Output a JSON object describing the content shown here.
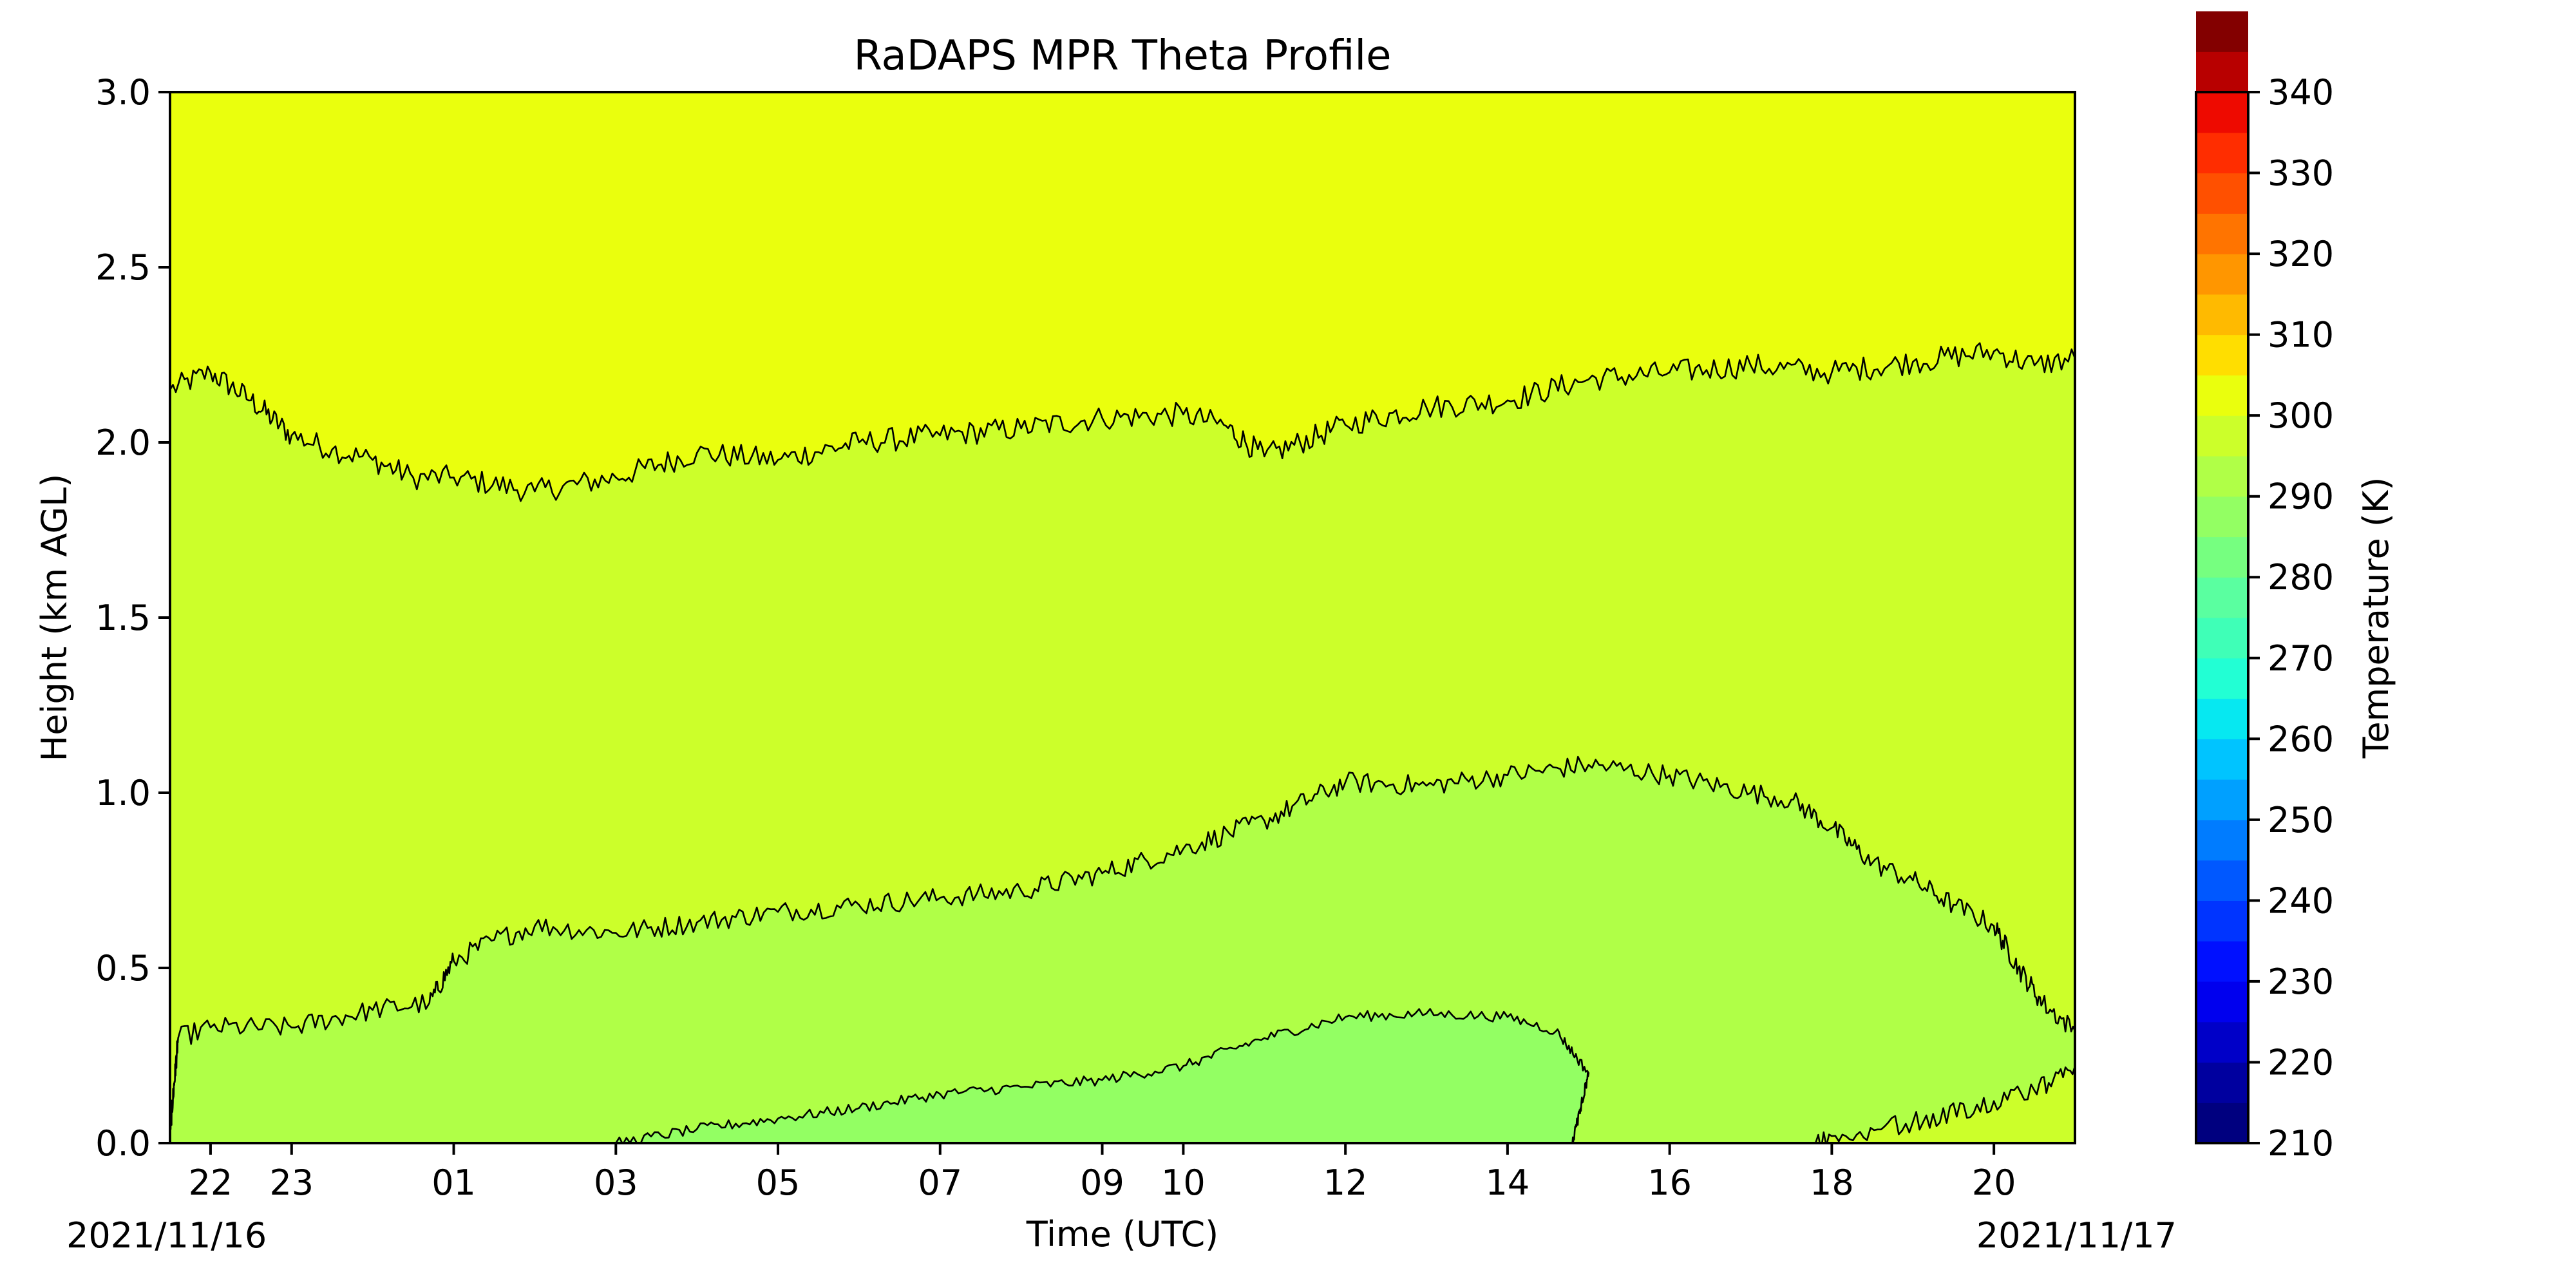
{
  "chart_data": {
    "type": "heatmap",
    "subtype": "filled-contour",
    "title": "RaDAPS MPR Theta Profile",
    "xlabel": "Time (UTC)",
    "ylabel": "Height (km AGL)",
    "x_start_label": "2021/11/16",
    "x_end_label": "2021/11/17",
    "x_unit": "hour UTC",
    "xlim": [
      21.5,
      45.0
    ],
    "ylim": [
      0.0,
      3.0
    ],
    "x_ticks": [
      {
        "x": 22,
        "label": "22"
      },
      {
        "x": 23,
        "label": "23"
      },
      {
        "x": 25,
        "label": "01"
      },
      {
        "x": 27,
        "label": "03"
      },
      {
        "x": 29,
        "label": "05"
      },
      {
        "x": 31,
        "label": "07"
      },
      {
        "x": 33,
        "label": "09"
      },
      {
        "x": 34,
        "label": "10"
      },
      {
        "x": 36,
        "label": "12"
      },
      {
        "x": 38,
        "label": "14"
      },
      {
        "x": 40,
        "label": "16"
      },
      {
        "x": 42,
        "label": "18"
      },
      {
        "x": 44,
        "label": "20"
      }
    ],
    "y_ticks": [
      {
        "v": 0.0,
        "label": "0.0"
      },
      {
        "v": 0.5,
        "label": "0.5"
      },
      {
        "v": 1.0,
        "label": "1.0"
      },
      {
        "v": 1.5,
        "label": "1.5"
      },
      {
        "v": 2.0,
        "label": "2.0"
      },
      {
        "v": 2.5,
        "label": "2.5"
      },
      {
        "v": 3.0,
        "label": "3.0"
      }
    ],
    "colorbar": {
      "label": "Temperature (K)",
      "min": 210,
      "max": 340,
      "step": 5,
      "ticks": [
        210,
        220,
        230,
        240,
        250,
        260,
        270,
        280,
        290,
        300,
        310,
        320,
        330,
        340
      ],
      "colors": [
        "#00007f",
        "#00009f",
        "#0000c8",
        "#0000ee",
        "#0010ff",
        "#0034ff",
        "#0058ff",
        "#007cff",
        "#00a0ff",
        "#00c4ff",
        "#06e8f1",
        "#22ffd4",
        "#3fffb7",
        "#5affa0",
        "#76ff80",
        "#93ff63",
        "#b0ff47",
        "#ccff2a",
        "#eaff0d",
        "#ffde00",
        "#ffba00",
        "#ff9600",
        "#ff7400",
        "#ff5000",
        "#ff2d00",
        "#ee0a00",
        "#b80000",
        "#830000"
      ]
    },
    "contours": [
      {
        "theta": 300,
        "description": "boundary 295-300 / 300-305",
        "points": [
          [
            21.5,
            2.15
          ],
          [
            22.0,
            2.2
          ],
          [
            22.5,
            2.12
          ],
          [
            23.0,
            2.02
          ],
          [
            23.5,
            1.98
          ],
          [
            24.0,
            1.95
          ],
          [
            24.5,
            1.9
          ],
          [
            25.0,
            1.9
          ],
          [
            26.0,
            1.86
          ],
          [
            27.0,
            1.9
          ],
          [
            28.0,
            1.97
          ],
          [
            29.0,
            1.95
          ],
          [
            30.0,
            2.0
          ],
          [
            31.0,
            2.02
          ],
          [
            32.0,
            2.04
          ],
          [
            33.0,
            2.07
          ],
          [
            34.0,
            2.08
          ],
          [
            34.5,
            2.05
          ],
          [
            35.0,
            1.96
          ],
          [
            36.0,
            2.05
          ],
          [
            37.0,
            2.1
          ],
          [
            38.0,
            2.12
          ],
          [
            39.0,
            2.18
          ],
          [
            40.0,
            2.2
          ],
          [
            41.0,
            2.22
          ],
          [
            42.0,
            2.2
          ],
          [
            43.0,
            2.23
          ],
          [
            44.0,
            2.26
          ],
          [
            44.5,
            2.22
          ],
          [
            45.0,
            2.24
          ]
        ]
      },
      {
        "theta": 295,
        "description": "boundary 290-295 / 295-300",
        "points": [
          [
            21.5,
            0.03
          ],
          [
            21.6,
            0.3
          ],
          [
            22.0,
            0.33
          ],
          [
            23.0,
            0.33
          ],
          [
            24.0,
            0.38
          ],
          [
            24.7,
            0.4
          ],
          [
            25.0,
            0.52
          ],
          [
            25.5,
            0.58
          ],
          [
            26.0,
            0.62
          ],
          [
            27.0,
            0.6
          ],
          [
            28.0,
            0.63
          ],
          [
            29.0,
            0.66
          ],
          [
            30.0,
            0.68
          ],
          [
            31.0,
            0.7
          ],
          [
            32.0,
            0.72
          ],
          [
            33.0,
            0.77
          ],
          [
            34.0,
            0.84
          ],
          [
            35.0,
            0.92
          ],
          [
            36.0,
            1.03
          ],
          [
            37.0,
            1.02
          ],
          [
            38.0,
            1.05
          ],
          [
            39.0,
            1.08
          ],
          [
            40.0,
            1.05
          ],
          [
            41.0,
            1.0
          ],
          [
            41.5,
            0.98
          ],
          [
            42.0,
            0.9
          ],
          [
            42.5,
            0.8
          ],
          [
            43.0,
            0.75
          ],
          [
            43.5,
            0.68
          ],
          [
            44.0,
            0.62
          ],
          [
            44.3,
            0.5
          ],
          [
            44.6,
            0.4
          ],
          [
            45.0,
            0.32
          ],
          [
            45.0,
            0.22
          ],
          [
            44.5,
            0.15
          ],
          [
            44.0,
            0.12
          ],
          [
            43.0,
            0.06
          ],
          [
            42.0,
            0.02
          ],
          [
            41.8,
            0.0
          ]
        ]
      },
      {
        "theta": 290,
        "description": "boundary 285-290 / 290-295",
        "points": [
          [
            27.0,
            0.0
          ],
          [
            28.0,
            0.04
          ],
          [
            29.0,
            0.07
          ],
          [
            30.0,
            0.1
          ],
          [
            31.0,
            0.14
          ],
          [
            32.0,
            0.16
          ],
          [
            33.0,
            0.18
          ],
          [
            34.0,
            0.22
          ],
          [
            35.0,
            0.3
          ],
          [
            36.0,
            0.36
          ],
          [
            37.0,
            0.37
          ],
          [
            38.0,
            0.36
          ],
          [
            38.6,
            0.32
          ],
          [
            39.0,
            0.2
          ],
          [
            38.9,
            0.1
          ],
          [
            38.8,
            0.0
          ]
        ]
      }
    ]
  }
}
